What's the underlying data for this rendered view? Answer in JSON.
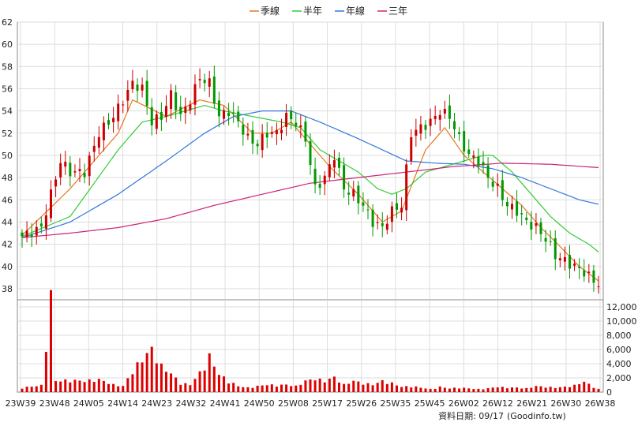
{
  "chart_data": {
    "type": "candlestick",
    "grid": true,
    "legend_position": "top-center",
    "legend": [
      {
        "name": "季線",
        "color": "#e87722"
      },
      {
        "name": "半年",
        "color": "#33cc33"
      },
      {
        "name": "年線",
        "color": "#3377dd"
      },
      {
        "name": "三年",
        "color": "#cc2277"
      }
    ],
    "colors": {
      "up": "#cc0000",
      "down": "#009900",
      "volume": "#dd0000"
    },
    "price_axis": {
      "min": 37,
      "max": 62,
      "ticks": [
        38,
        40,
        42,
        44,
        46,
        48,
        50,
        52,
        54,
        56,
        58,
        60,
        62
      ]
    },
    "volume_axis": {
      "min": 0,
      "max": 13000,
      "ticks": [
        "2,000",
        "4,000",
        "6,000",
        "8,000",
        "10,000",
        "12,000"
      ]
    },
    "x_tick_labels": [
      "23W39",
      "23W48",
      "24W05",
      "24W14",
      "24W23",
      "24W32",
      "24W41",
      "24W50",
      "25W08",
      "25W17",
      "25W26",
      "25W35",
      "25W45",
      "26W02",
      "26W12",
      "26W21",
      "26W30",
      "26W38"
    ],
    "weekly_close_anchors": [
      [
        0,
        42.7
      ],
      [
        4,
        43.5
      ],
      [
        6,
        46.5
      ],
      [
        8,
        49.5
      ],
      [
        10,
        48.5
      ],
      [
        13,
        48.5
      ],
      [
        16,
        52.0
      ],
      [
        19,
        53.5
      ],
      [
        21,
        55.0
      ],
      [
        23,
        56.5
      ],
      [
        25,
        56.0
      ],
      [
        27,
        53.0
      ],
      [
        29,
        53.5
      ],
      [
        31,
        55.5
      ],
      [
        33,
        53.5
      ],
      [
        35,
        55.0
      ],
      [
        37,
        57.0
      ],
      [
        39,
        56.5
      ],
      [
        41,
        53.5
      ],
      [
        43,
        54.0
      ],
      [
        45,
        53.0
      ],
      [
        47,
        51.5
      ],
      [
        49,
        51.0
      ],
      [
        51,
        52.0
      ],
      [
        53,
        52.0
      ],
      [
        55,
        53.5
      ],
      [
        57,
        53.0
      ],
      [
        59,
        51.5
      ],
      [
        61,
        47.0
      ],
      [
        63,
        48.0
      ],
      [
        65,
        50.0
      ],
      [
        67,
        47.0
      ],
      [
        69,
        46.5
      ],
      [
        71,
        45.5
      ],
      [
        73,
        44.0
      ],
      [
        75,
        43.5
      ],
      [
        77,
        45.0
      ],
      [
        79,
        45.5
      ],
      [
        81,
        52.0
      ],
      [
        83,
        52.5
      ],
      [
        85,
        53.0
      ],
      [
        87,
        54.0
      ],
      [
        89,
        53.5
      ],
      [
        91,
        51.5
      ],
      [
        93,
        50.0
      ],
      [
        95,
        49.5
      ],
      [
        97,
        48.0
      ],
      [
        99,
        47.0
      ],
      [
        101,
        45.5
      ],
      [
        103,
        45.0
      ],
      [
        105,
        44.0
      ],
      [
        107,
        43.5
      ],
      [
        109,
        42.5
      ],
      [
        111,
        41.0
      ],
      [
        113,
        40.5
      ],
      [
        115,
        40.0
      ],
      [
        117,
        39.5
      ],
      [
        119,
        38.7
      ],
      [
        120,
        38.4
      ]
    ],
    "volume_anchors": [
      [
        0,
        600
      ],
      [
        4,
        900
      ],
      [
        6,
        12800
      ],
      [
        7,
        1500
      ],
      [
        10,
        1600
      ],
      [
        13,
        1500
      ],
      [
        16,
        1700
      ],
      [
        19,
        1000
      ],
      [
        21,
        800
      ],
      [
        23,
        2800
      ],
      [
        25,
        4500
      ],
      [
        27,
        5800
      ],
      [
        29,
        3500
      ],
      [
        31,
        2500
      ],
      [
        33,
        1200
      ],
      [
        35,
        1000
      ],
      [
        37,
        2600
      ],
      [
        39,
        4800
      ],
      [
        41,
        2400
      ],
      [
        43,
        1500
      ],
      [
        45,
        800
      ],
      [
        47,
        600
      ],
      [
        49,
        800
      ],
      [
        51,
        1000
      ],
      [
        53,
        900
      ],
      [
        55,
        1000
      ],
      [
        57,
        800
      ],
      [
        59,
        1500
      ],
      [
        61,
        1800
      ],
      [
        63,
        1500
      ],
      [
        65,
        2000
      ],
      [
        67,
        1000
      ],
      [
        69,
        1500
      ],
      [
        71,
        1200
      ],
      [
        73,
        1000
      ],
      [
        75,
        1500
      ],
      [
        77,
        1200
      ],
      [
        79,
        700
      ],
      [
        81,
        800
      ],
      [
        83,
        600
      ],
      [
        85,
        400
      ],
      [
        87,
        700
      ],
      [
        89,
        500
      ],
      [
        91,
        600
      ],
      [
        93,
        500
      ],
      [
        95,
        400
      ],
      [
        97,
        500
      ],
      [
        99,
        700
      ],
      [
        101,
        600
      ],
      [
        103,
        600
      ],
      [
        105,
        500
      ],
      [
        107,
        800
      ],
      [
        109,
        700
      ],
      [
        111,
        600
      ],
      [
        113,
        700
      ],
      [
        115,
        900
      ],
      [
        117,
        1400
      ],
      [
        119,
        700
      ],
      [
        120,
        400
      ]
    ],
    "moving_averages": {
      "季線": [
        [
          0,
          42.8
        ],
        [
          10,
          47.0
        ],
        [
          20,
          52.0
        ],
        [
          23,
          55.0
        ],
        [
          30,
          53.5
        ],
        [
          37,
          55.0
        ],
        [
          42,
          54.5
        ],
        [
          48,
          52.0
        ],
        [
          52,
          52.0
        ],
        [
          56,
          53.0
        ],
        [
          60,
          51.0
        ],
        [
          64,
          49.0
        ],
        [
          70,
          46.5
        ],
        [
          75,
          44.0
        ],
        [
          79,
          45.0
        ],
        [
          84,
          50.5
        ],
        [
          88,
          52.5
        ],
        [
          92,
          50.0
        ],
        [
          96,
          48.5
        ],
        [
          100,
          47.0
        ],
        [
          104,
          45.5
        ],
        [
          108,
          43.5
        ],
        [
          112,
          41.8
        ],
        [
          116,
          40.0
        ],
        [
          120,
          38.7
        ]
      ],
      "半年": [
        [
          0,
          42.7
        ],
        [
          10,
          44.5
        ],
        [
          15,
          47.5
        ],
        [
          20,
          50.5
        ],
        [
          25,
          53.0
        ],
        [
          30,
          53.5
        ],
        [
          38,
          54.5
        ],
        [
          42,
          54.0
        ],
        [
          48,
          53.5
        ],
        [
          54,
          53.0
        ],
        [
          58,
          52.5
        ],
        [
          62,
          50.5
        ],
        [
          66,
          49.5
        ],
        [
          70,
          48.5
        ],
        [
          74,
          47.0
        ],
        [
          77,
          46.5
        ],
        [
          80,
          47.0
        ],
        [
          84,
          48.5
        ],
        [
          88,
          49.0
        ],
        [
          92,
          49.5
        ],
        [
          96,
          50.0
        ],
        [
          98,
          50.0
        ],
        [
          102,
          48.5
        ],
        [
          106,
          46.5
        ],
        [
          110,
          44.5
        ],
        [
          114,
          43.0
        ],
        [
          118,
          42.0
        ],
        [
          120,
          41.3
        ]
      ],
      "年線": [
        [
          0,
          42.6
        ],
        [
          10,
          44.0
        ],
        [
          20,
          46.5
        ],
        [
          30,
          49.5
        ],
        [
          38,
          52.0
        ],
        [
          44,
          53.5
        ],
        [
          50,
          54.0
        ],
        [
          56,
          54.0
        ],
        [
          62,
          53.0
        ],
        [
          70,
          51.5
        ],
        [
          80,
          49.5
        ],
        [
          86,
          49.3
        ],
        [
          92,
          49.2
        ],
        [
          98,
          48.8
        ],
        [
          104,
          48.0
        ],
        [
          110,
          47.0
        ],
        [
          116,
          46.0
        ],
        [
          120,
          45.6
        ]
      ],
      "三年": [
        [
          0,
          42.6
        ],
        [
          10,
          43.0
        ],
        [
          20,
          43.5
        ],
        [
          30,
          44.3
        ],
        [
          40,
          45.5
        ],
        [
          50,
          46.5
        ],
        [
          60,
          47.5
        ],
        [
          70,
          48.0
        ],
        [
          80,
          48.5
        ],
        [
          90,
          49.0
        ],
        [
          100,
          49.3
        ],
        [
          110,
          49.2
        ],
        [
          120,
          48.9
        ]
      ]
    }
  },
  "footer": {
    "date_label": "資料日期: 09/17",
    "source": "(Goodinfo.tw)"
  }
}
